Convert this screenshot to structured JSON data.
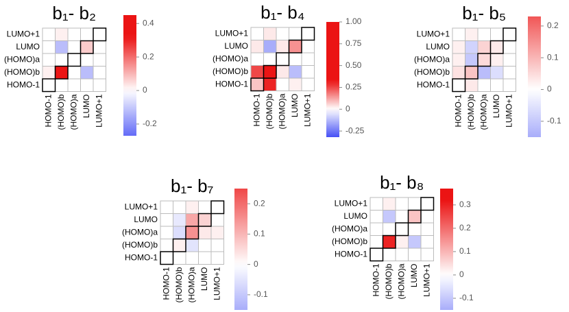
{
  "chart_data": [
    {
      "type": "heatmap",
      "title": "b₁- b₂",
      "x": [
        "HOMO-1",
        "(HOMO)b",
        "(HOMO)a",
        "LUMO",
        "LUMO+1"
      ],
      "y": [
        "LUMO+1",
        "LUMO",
        "(HOMO)a",
        "(HOMO)b",
        "HOMO-1"
      ],
      "values": [
        [
          0,
          0.02,
          0,
          0,
          0
        ],
        [
          0,
          -0.12,
          0,
          0.07,
          0
        ],
        [
          0,
          0,
          0,
          0,
          0
        ],
        [
          0.02,
          0.38,
          0,
          -0.12,
          0
        ],
        [
          0,
          0,
          0,
          0,
          0
        ]
      ],
      "clim": [
        -0.27,
        0.45
      ],
      "cticks": [
        0.4,
        0.2,
        0,
        -0.2
      ]
    },
    {
      "type": "heatmap",
      "title": "b₁- b₄",
      "x": [
        "HOMO-1",
        "(HOMO)b",
        "(HOMO)a",
        "LUMO",
        "LUMO+1"
      ],
      "y": [
        "LUMO+1",
        "LUMO",
        "(HOMO)a",
        "(HOMO)b",
        "HOMO-1"
      ],
      "values": [
        [
          0,
          0.03,
          0,
          0,
          0
        ],
        [
          0.03,
          -0.15,
          0.03,
          0.15,
          0
        ],
        [
          0,
          0,
          0,
          0,
          0
        ],
        [
          0.25,
          0.95,
          0.03,
          -0.12,
          0
        ],
        [
          0.08,
          0.3,
          0,
          0.02,
          0
        ]
      ],
      "clim": [
        -0.32,
        1.0
      ],
      "cticks": [
        {
          "value": 1,
          "label": "1.00"
        },
        0.75,
        {
          "value": 0.5,
          "label": "0.50"
        },
        0.25,
        0,
        -0.25
      ]
    },
    {
      "type": "heatmap",
      "title": "b₁- b₅",
      "x": [
        "HOMO-1",
        "(HOMO)b",
        "(HOMO)a",
        "LUMO",
        "LUMO+1"
      ],
      "y": [
        "LUMO+1",
        "LUMO",
        "(HOMO)a",
        "(HOMO)b",
        "HOMO-1"
      ],
      "values": [
        [
          0,
          0.02,
          0,
          0,
          0
        ],
        [
          0.02,
          -0.08,
          0.06,
          0.03,
          0
        ],
        [
          0.02,
          -0.1,
          0.05,
          0.02,
          0
        ],
        [
          0.04,
          0.08,
          -0.12,
          -0.06,
          0
        ],
        [
          0,
          0.03,
          0,
          0,
          0
        ]
      ],
      "clim": [
        -0.15,
        0.23
      ],
      "cticks": [
        0.2,
        0.1,
        0,
        -0.1
      ]
    },
    {
      "type": "heatmap",
      "title": "b₁- b₇",
      "x": [
        "HOMO-1",
        "(HOMO)b",
        "(HOMO)a",
        "LUMO",
        "LUMO+1"
      ],
      "y": [
        "LUMO+1",
        "LUMO",
        "(HOMO)a",
        "(HOMO)b",
        "HOMO-1"
      ],
      "values": [
        [
          0,
          0,
          0.02,
          0,
          0
        ],
        [
          0,
          -0.04,
          0.12,
          0.06,
          0
        ],
        [
          0,
          -0.06,
          0.15,
          0.03,
          0.02
        ],
        [
          0,
          0.02,
          -0.05,
          0,
          0
        ],
        [
          0,
          0,
          0,
          0,
          0
        ]
      ],
      "clim": [
        -0.15,
        0.25
      ],
      "cticks": [
        0.2,
        0.1,
        0,
        -0.1
      ]
    },
    {
      "type": "heatmap",
      "title": "b₁- b₈",
      "x": [
        "HOMO-1",
        "(HOMO)b",
        "(HOMO)a",
        "LUMO",
        "LUMO+1"
      ],
      "y": [
        "LUMO+1",
        "LUMO",
        "(HOMO)a",
        "(HOMO)b",
        "HOMO-1"
      ],
      "values": [
        [
          0,
          0.02,
          0,
          0,
          0
        ],
        [
          0,
          -0.1,
          0,
          0.08,
          0
        ],
        [
          0,
          0,
          0,
          0,
          0
        ],
        [
          0,
          0.3,
          0.02,
          -0.1,
          0
        ],
        [
          0,
          0,
          0,
          0,
          0
        ]
      ],
      "clim": [
        -0.15,
        0.37
      ],
      "cticks": [
        0.3,
        0.2,
        0.1,
        0,
        -0.1
      ]
    }
  ]
}
